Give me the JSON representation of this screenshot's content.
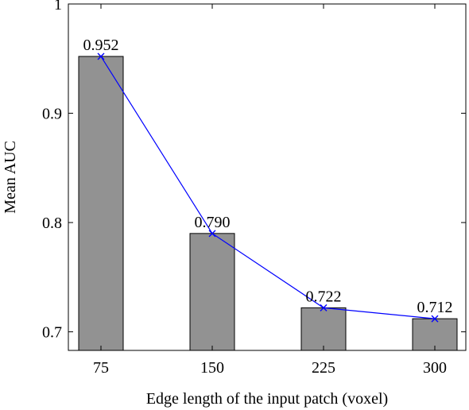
{
  "chart_data": {
    "type": "bar",
    "categories": [
      "75",
      "150",
      "225",
      "300"
    ],
    "values": [
      0.952,
      0.79,
      0.722,
      0.712
    ],
    "value_labels": [
      "0.952",
      "0.790",
      "0.722",
      "0.712"
    ],
    "overlay_line": true,
    "xlabel": "Edge length of the input patch (voxel)",
    "ylabel": "Mean AUC",
    "ylim": [
      0.683,
      1.0
    ],
    "yticks": [
      0.7,
      0.8,
      0.9,
      1.0
    ],
    "ytick_labels": [
      "0.7",
      "0.8",
      "0.9",
      "1"
    ],
    "grid": false,
    "colors": {
      "bar": "#929292",
      "bar_edge": "#000000",
      "line": "#0000ff"
    }
  }
}
